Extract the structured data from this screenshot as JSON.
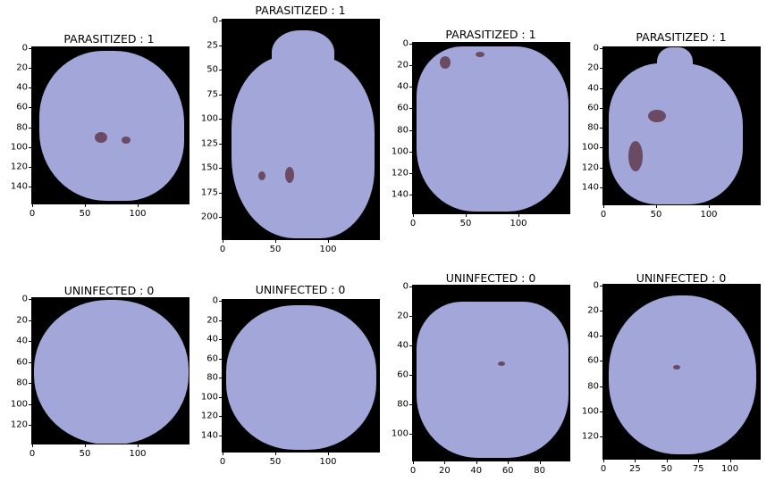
{
  "panels": [
    {
      "title": "PARASITIZED : 1",
      "yticks": [
        "0",
        "20",
        "40",
        "60",
        "80",
        "100",
        "120",
        "140"
      ],
      "xticks": [
        "0",
        "50",
        "100"
      ],
      "label": "parasitized"
    },
    {
      "title": "PARASITIZED : 1",
      "yticks": [
        "0",
        "25",
        "50",
        "75",
        "100",
        "125",
        "150",
        "175",
        "200"
      ],
      "xticks": [
        "0",
        "50",
        "100"
      ],
      "label": "parasitized"
    },
    {
      "title": "PARASITIZED : 1",
      "yticks": [
        "0",
        "20",
        "40",
        "60",
        "80",
        "100",
        "120",
        "140"
      ],
      "xticks": [
        "0",
        "50",
        "100"
      ],
      "label": "parasitized"
    },
    {
      "title": "PARASITIZED : 1",
      "yticks": [
        "0",
        "20",
        "40",
        "60",
        "80",
        "100",
        "120",
        "140"
      ],
      "xticks": [
        "0",
        "50",
        "100"
      ],
      "label": "parasitized"
    },
    {
      "title": "UNINFECTED : 0",
      "yticks": [
        "0",
        "20",
        "40",
        "60",
        "80",
        "100",
        "120"
      ],
      "xticks": [
        "0",
        "50",
        "100"
      ],
      "label": "uninfected"
    },
    {
      "title": "UNINFECTED : 0",
      "yticks": [
        "0",
        "20",
        "40",
        "60",
        "80",
        "100",
        "120",
        "140"
      ],
      "xticks": [
        "0",
        "50",
        "100"
      ],
      "label": "uninfected"
    },
    {
      "title": "UNINFECTED : 0",
      "yticks": [
        "0",
        "20",
        "40",
        "60",
        "80",
        "100"
      ],
      "xticks": [
        "0",
        "20",
        "40",
        "60",
        "80"
      ],
      "label": "uninfected"
    },
    {
      "title": "UNINFECTED : 0",
      "yticks": [
        "0",
        "20",
        "40",
        "60",
        "80",
        "100",
        "120"
      ],
      "xticks": [
        "0",
        "25",
        "50",
        "75",
        "100"
      ],
      "label": "uninfected"
    }
  ],
  "colors": {
    "cell": "#a2a6d8",
    "background": "#000000",
    "parasite": "#6b4a63"
  }
}
